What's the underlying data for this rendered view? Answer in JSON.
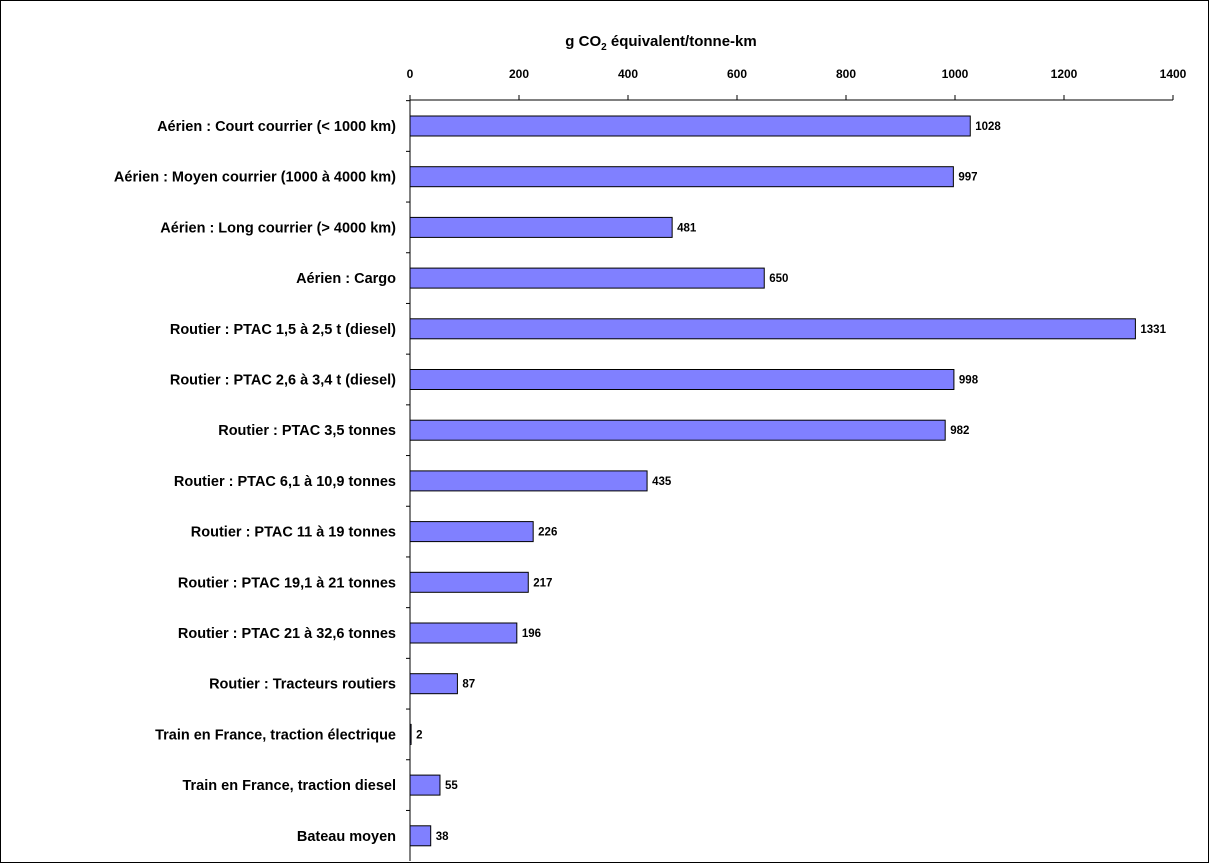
{
  "chart_data": {
    "type": "bar",
    "orientation": "horizontal",
    "title": {
      "prefix": "g CO",
      "subscript": "2",
      "suffix": " équivalent/tonne-km"
    },
    "x_axis": {
      "position": "top",
      "range": [
        0,
        1400
      ],
      "ticks": [
        "0",
        "200",
        "400",
        "600",
        "800",
        "1000",
        "1200",
        "1400"
      ],
      "tick_values": [
        0,
        200,
        400,
        600,
        800,
        1000,
        1200,
        1400
      ]
    },
    "categories": [
      "Aérien : Court courrier (< 1000 km)",
      "Aérien : Moyen courrier (1000 à 4000 km)",
      "Aérien : Long courrier (> 4000 km)",
      "Aérien : Cargo",
      "Routier : PTAC 1,5 à 2,5 t (diesel)",
      "Routier : PTAC 2,6 à 3,4 t (diesel)",
      "Routier : PTAC 3,5 tonnes",
      "Routier : PTAC 6,1 à 10,9 tonnes",
      "Routier : PTAC 11 à 19 tonnes",
      "Routier : PTAC 19,1 à 21 tonnes",
      "Routier : PTAC 21 à 32,6 tonnes",
      "Routier : Tracteurs routiers",
      "Train en France, traction électrique",
      "Train en France, traction diesel",
      "Bateau moyen"
    ],
    "values": [
      1028,
      997,
      481,
      650,
      1331,
      998,
      982,
      435,
      226,
      217,
      196,
      87,
      2,
      55,
      38
    ],
    "data_labels": [
      "1028",
      "997",
      "481",
      "650",
      "1331",
      "998",
      "982",
      "435",
      "226",
      "217",
      "196",
      "87",
      "2",
      "55",
      "38"
    ],
    "bar_color": "#8080ff",
    "bar_edge_color": "#000000",
    "grid": false,
    "legend": false
  }
}
